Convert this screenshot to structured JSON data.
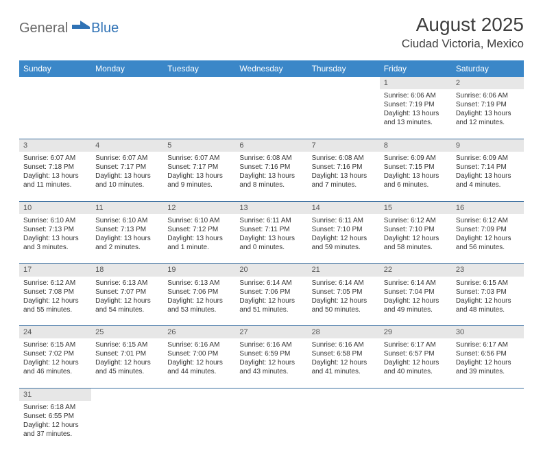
{
  "logo": {
    "textGeneral": "General",
    "textBlue": "Blue"
  },
  "title": "August 2025",
  "location": "Ciudad Victoria, Mexico",
  "colors": {
    "headerBg": "#3b87c8",
    "headerText": "#ffffff",
    "dayNumBg": "#e7e7e7",
    "rowBorder": "#3b6fa0",
    "bodyText": "#333333",
    "logoAccent": "#2f72b5"
  },
  "dayHeaders": [
    "Sunday",
    "Monday",
    "Tuesday",
    "Wednesday",
    "Thursday",
    "Friday",
    "Saturday"
  ],
  "weeks": [
    [
      null,
      null,
      null,
      null,
      null,
      {
        "n": "1",
        "sunrise": "Sunrise: 6:06 AM",
        "sunset": "Sunset: 7:19 PM",
        "day1": "Daylight: 13 hours",
        "day2": "and 13 minutes."
      },
      {
        "n": "2",
        "sunrise": "Sunrise: 6:06 AM",
        "sunset": "Sunset: 7:19 PM",
        "day1": "Daylight: 13 hours",
        "day2": "and 12 minutes."
      }
    ],
    [
      {
        "n": "3",
        "sunrise": "Sunrise: 6:07 AM",
        "sunset": "Sunset: 7:18 PM",
        "day1": "Daylight: 13 hours",
        "day2": "and 11 minutes."
      },
      {
        "n": "4",
        "sunrise": "Sunrise: 6:07 AM",
        "sunset": "Sunset: 7:17 PM",
        "day1": "Daylight: 13 hours",
        "day2": "and 10 minutes."
      },
      {
        "n": "5",
        "sunrise": "Sunrise: 6:07 AM",
        "sunset": "Sunset: 7:17 PM",
        "day1": "Daylight: 13 hours",
        "day2": "and 9 minutes."
      },
      {
        "n": "6",
        "sunrise": "Sunrise: 6:08 AM",
        "sunset": "Sunset: 7:16 PM",
        "day1": "Daylight: 13 hours",
        "day2": "and 8 minutes."
      },
      {
        "n": "7",
        "sunrise": "Sunrise: 6:08 AM",
        "sunset": "Sunset: 7:16 PM",
        "day1": "Daylight: 13 hours",
        "day2": "and 7 minutes."
      },
      {
        "n": "8",
        "sunrise": "Sunrise: 6:09 AM",
        "sunset": "Sunset: 7:15 PM",
        "day1": "Daylight: 13 hours",
        "day2": "and 6 minutes."
      },
      {
        "n": "9",
        "sunrise": "Sunrise: 6:09 AM",
        "sunset": "Sunset: 7:14 PM",
        "day1": "Daylight: 13 hours",
        "day2": "and 4 minutes."
      }
    ],
    [
      {
        "n": "10",
        "sunrise": "Sunrise: 6:10 AM",
        "sunset": "Sunset: 7:13 PM",
        "day1": "Daylight: 13 hours",
        "day2": "and 3 minutes."
      },
      {
        "n": "11",
        "sunrise": "Sunrise: 6:10 AM",
        "sunset": "Sunset: 7:13 PM",
        "day1": "Daylight: 13 hours",
        "day2": "and 2 minutes."
      },
      {
        "n": "12",
        "sunrise": "Sunrise: 6:10 AM",
        "sunset": "Sunset: 7:12 PM",
        "day1": "Daylight: 13 hours",
        "day2": "and 1 minute."
      },
      {
        "n": "13",
        "sunrise": "Sunrise: 6:11 AM",
        "sunset": "Sunset: 7:11 PM",
        "day1": "Daylight: 13 hours",
        "day2": "and 0 minutes."
      },
      {
        "n": "14",
        "sunrise": "Sunrise: 6:11 AM",
        "sunset": "Sunset: 7:10 PM",
        "day1": "Daylight: 12 hours",
        "day2": "and 59 minutes."
      },
      {
        "n": "15",
        "sunrise": "Sunrise: 6:12 AM",
        "sunset": "Sunset: 7:10 PM",
        "day1": "Daylight: 12 hours",
        "day2": "and 58 minutes."
      },
      {
        "n": "16",
        "sunrise": "Sunrise: 6:12 AM",
        "sunset": "Sunset: 7:09 PM",
        "day1": "Daylight: 12 hours",
        "day2": "and 56 minutes."
      }
    ],
    [
      {
        "n": "17",
        "sunrise": "Sunrise: 6:12 AM",
        "sunset": "Sunset: 7:08 PM",
        "day1": "Daylight: 12 hours",
        "day2": "and 55 minutes."
      },
      {
        "n": "18",
        "sunrise": "Sunrise: 6:13 AM",
        "sunset": "Sunset: 7:07 PM",
        "day1": "Daylight: 12 hours",
        "day2": "and 54 minutes."
      },
      {
        "n": "19",
        "sunrise": "Sunrise: 6:13 AM",
        "sunset": "Sunset: 7:06 PM",
        "day1": "Daylight: 12 hours",
        "day2": "and 53 minutes."
      },
      {
        "n": "20",
        "sunrise": "Sunrise: 6:14 AM",
        "sunset": "Sunset: 7:06 PM",
        "day1": "Daylight: 12 hours",
        "day2": "and 51 minutes."
      },
      {
        "n": "21",
        "sunrise": "Sunrise: 6:14 AM",
        "sunset": "Sunset: 7:05 PM",
        "day1": "Daylight: 12 hours",
        "day2": "and 50 minutes."
      },
      {
        "n": "22",
        "sunrise": "Sunrise: 6:14 AM",
        "sunset": "Sunset: 7:04 PM",
        "day1": "Daylight: 12 hours",
        "day2": "and 49 minutes."
      },
      {
        "n": "23",
        "sunrise": "Sunrise: 6:15 AM",
        "sunset": "Sunset: 7:03 PM",
        "day1": "Daylight: 12 hours",
        "day2": "and 48 minutes."
      }
    ],
    [
      {
        "n": "24",
        "sunrise": "Sunrise: 6:15 AM",
        "sunset": "Sunset: 7:02 PM",
        "day1": "Daylight: 12 hours",
        "day2": "and 46 minutes."
      },
      {
        "n": "25",
        "sunrise": "Sunrise: 6:15 AM",
        "sunset": "Sunset: 7:01 PM",
        "day1": "Daylight: 12 hours",
        "day2": "and 45 minutes."
      },
      {
        "n": "26",
        "sunrise": "Sunrise: 6:16 AM",
        "sunset": "Sunset: 7:00 PM",
        "day1": "Daylight: 12 hours",
        "day2": "and 44 minutes."
      },
      {
        "n": "27",
        "sunrise": "Sunrise: 6:16 AM",
        "sunset": "Sunset: 6:59 PM",
        "day1": "Daylight: 12 hours",
        "day2": "and 43 minutes."
      },
      {
        "n": "28",
        "sunrise": "Sunrise: 6:16 AM",
        "sunset": "Sunset: 6:58 PM",
        "day1": "Daylight: 12 hours",
        "day2": "and 41 minutes."
      },
      {
        "n": "29",
        "sunrise": "Sunrise: 6:17 AM",
        "sunset": "Sunset: 6:57 PM",
        "day1": "Daylight: 12 hours",
        "day2": "and 40 minutes."
      },
      {
        "n": "30",
        "sunrise": "Sunrise: 6:17 AM",
        "sunset": "Sunset: 6:56 PM",
        "day1": "Daylight: 12 hours",
        "day2": "and 39 minutes."
      }
    ],
    [
      {
        "n": "31",
        "sunrise": "Sunrise: 6:18 AM",
        "sunset": "Sunset: 6:55 PM",
        "day1": "Daylight: 12 hours",
        "day2": "and 37 minutes."
      },
      null,
      null,
      null,
      null,
      null,
      null
    ]
  ]
}
